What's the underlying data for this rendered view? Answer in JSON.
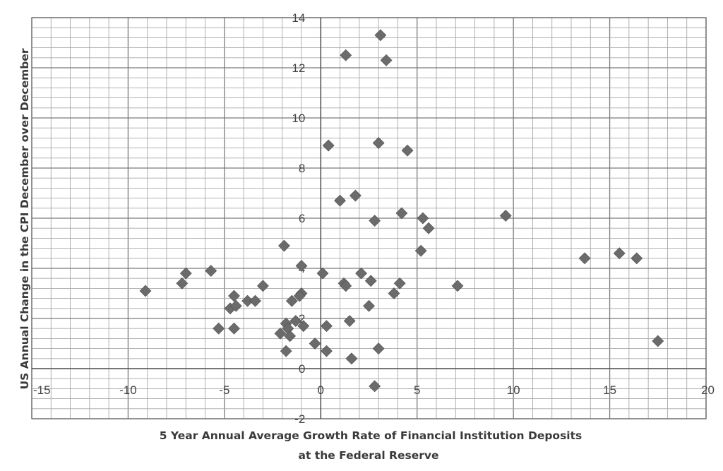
{
  "chart_data": {
    "type": "scatter",
    "title": "",
    "xlabel": "5 Year Annual Average Growth Rate of Financial  Institution Deposits",
    "xlabel_line2": "at the Federal Reserve",
    "ylabel": "US Annual Change  in the CPI December over December",
    "xlim": [
      -15,
      20
    ],
    "ylim": [
      -2,
      14
    ],
    "x_ticks": [
      -15,
      -10,
      -5,
      0,
      5,
      10,
      15,
      20
    ],
    "x_tick_labels": [
      "-15",
      "-10",
      "-5",
      "0",
      "5",
      "10",
      "15",
      "20"
    ],
    "y_ticks": [
      -2,
      0,
      2,
      4,
      6,
      8,
      10,
      12,
      14
    ],
    "y_tick_labels": [
      "-2",
      "0",
      "2",
      "4",
      "6",
      "8",
      "10",
      "12",
      "14"
    ],
    "grid": true,
    "legend": "none",
    "marker": "diamond",
    "marker_color": "#6b6b6b",
    "points": [
      {
        "x": 3.1,
        "y": 13.3
      },
      {
        "x": 1.3,
        "y": 12.5
      },
      {
        "x": 3.4,
        "y": 12.3
      },
      {
        "x": 0.4,
        "y": 8.9
      },
      {
        "x": 3.0,
        "y": 9.0
      },
      {
        "x": 4.5,
        "y": 8.7
      },
      {
        "x": 1.8,
        "y": 6.9
      },
      {
        "x": 1.0,
        "y": 6.7
      },
      {
        "x": 4.2,
        "y": 6.2
      },
      {
        "x": 2.8,
        "y": 5.9
      },
      {
        "x": 5.3,
        "y": 6.0
      },
      {
        "x": 5.6,
        "y": 5.6
      },
      {
        "x": 9.6,
        "y": 6.1
      },
      {
        "x": 5.2,
        "y": 4.7
      },
      {
        "x": -1.9,
        "y": 4.9
      },
      {
        "x": 13.7,
        "y": 4.4
      },
      {
        "x": 15.5,
        "y": 4.6
      },
      {
        "x": 16.4,
        "y": 4.4
      },
      {
        "x": -5.7,
        "y": 3.9
      },
      {
        "x": -7.0,
        "y": 3.8
      },
      {
        "x": -1.0,
        "y": 4.1
      },
      {
        "x": 0.1,
        "y": 3.8
      },
      {
        "x": 2.1,
        "y": 3.8
      },
      {
        "x": -7.2,
        "y": 3.4
      },
      {
        "x": -9.1,
        "y": 3.1
      },
      {
        "x": 1.2,
        "y": 3.4
      },
      {
        "x": 1.3,
        "y": 3.3
      },
      {
        "x": 2.6,
        "y": 3.5
      },
      {
        "x": 4.1,
        "y": 3.4
      },
      {
        "x": 3.8,
        "y": 3.0
      },
      {
        "x": 7.1,
        "y": 3.3
      },
      {
        "x": -3.0,
        "y": 3.3
      },
      {
        "x": -4.5,
        "y": 2.9
      },
      {
        "x": -3.8,
        "y": 2.7
      },
      {
        "x": -3.4,
        "y": 2.7
      },
      {
        "x": -4.7,
        "y": 2.4
      },
      {
        "x": -4.4,
        "y": 2.5
      },
      {
        "x": -1.0,
        "y": 3.0
      },
      {
        "x": -1.1,
        "y": 2.9
      },
      {
        "x": -1.5,
        "y": 2.7
      },
      {
        "x": 2.5,
        "y": 2.5
      },
      {
        "x": -5.3,
        "y": 1.6
      },
      {
        "x": -4.5,
        "y": 1.6
      },
      {
        "x": -1.3,
        "y": 1.9
      },
      {
        "x": -1.8,
        "y": 1.8
      },
      {
        "x": -0.9,
        "y": 1.7
      },
      {
        "x": -1.7,
        "y": 1.6
      },
      {
        "x": 0.3,
        "y": 1.7
      },
      {
        "x": 1.5,
        "y": 1.9
      },
      {
        "x": -2.1,
        "y": 1.4
      },
      {
        "x": -1.6,
        "y": 1.3
      },
      {
        "x": -0.3,
        "y": 1.0
      },
      {
        "x": -1.8,
        "y": 0.7
      },
      {
        "x": 0.3,
        "y": 0.7
      },
      {
        "x": 3.0,
        "y": 0.8
      },
      {
        "x": 1.6,
        "y": 0.4
      },
      {
        "x": 17.5,
        "y": 1.1
      },
      {
        "x": 2.8,
        "y": -0.7
      }
    ]
  }
}
